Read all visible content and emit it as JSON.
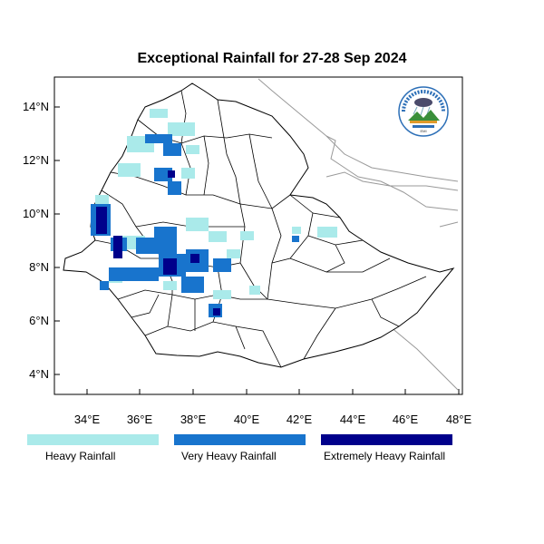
{
  "title": "Exceptional Rainfall for 27-28 Sep 2024",
  "y_ticks": [
    "14°N",
    "12°N",
    "10°N",
    "8°N",
    "6°N",
    "4°N"
  ],
  "x_ticks": [
    "34°E",
    "36°E",
    "38°E",
    "40°E",
    "42°E",
    "44°E",
    "46°E",
    "48°E"
  ],
  "lon_range": [
    32.8,
    48.1
  ],
  "lat_range": [
    3.2,
    15.0
  ],
  "legend": [
    {
      "label": "Heavy Rainfall",
      "color": "#aaeaea"
    },
    {
      "label": "Very Heavy Rainfall",
      "color": "#1874cd"
    },
    {
      "label": "Extremely Heavy Rainfall",
      "color": "#00008b"
    }
  ],
  "logo": {
    "name": "Ethiopian Meteorological Institute",
    "text": "EMI"
  },
  "colors": {
    "map_bg": "#ffffff",
    "border": "#000000",
    "neighbor_border": "#999999"
  }
}
